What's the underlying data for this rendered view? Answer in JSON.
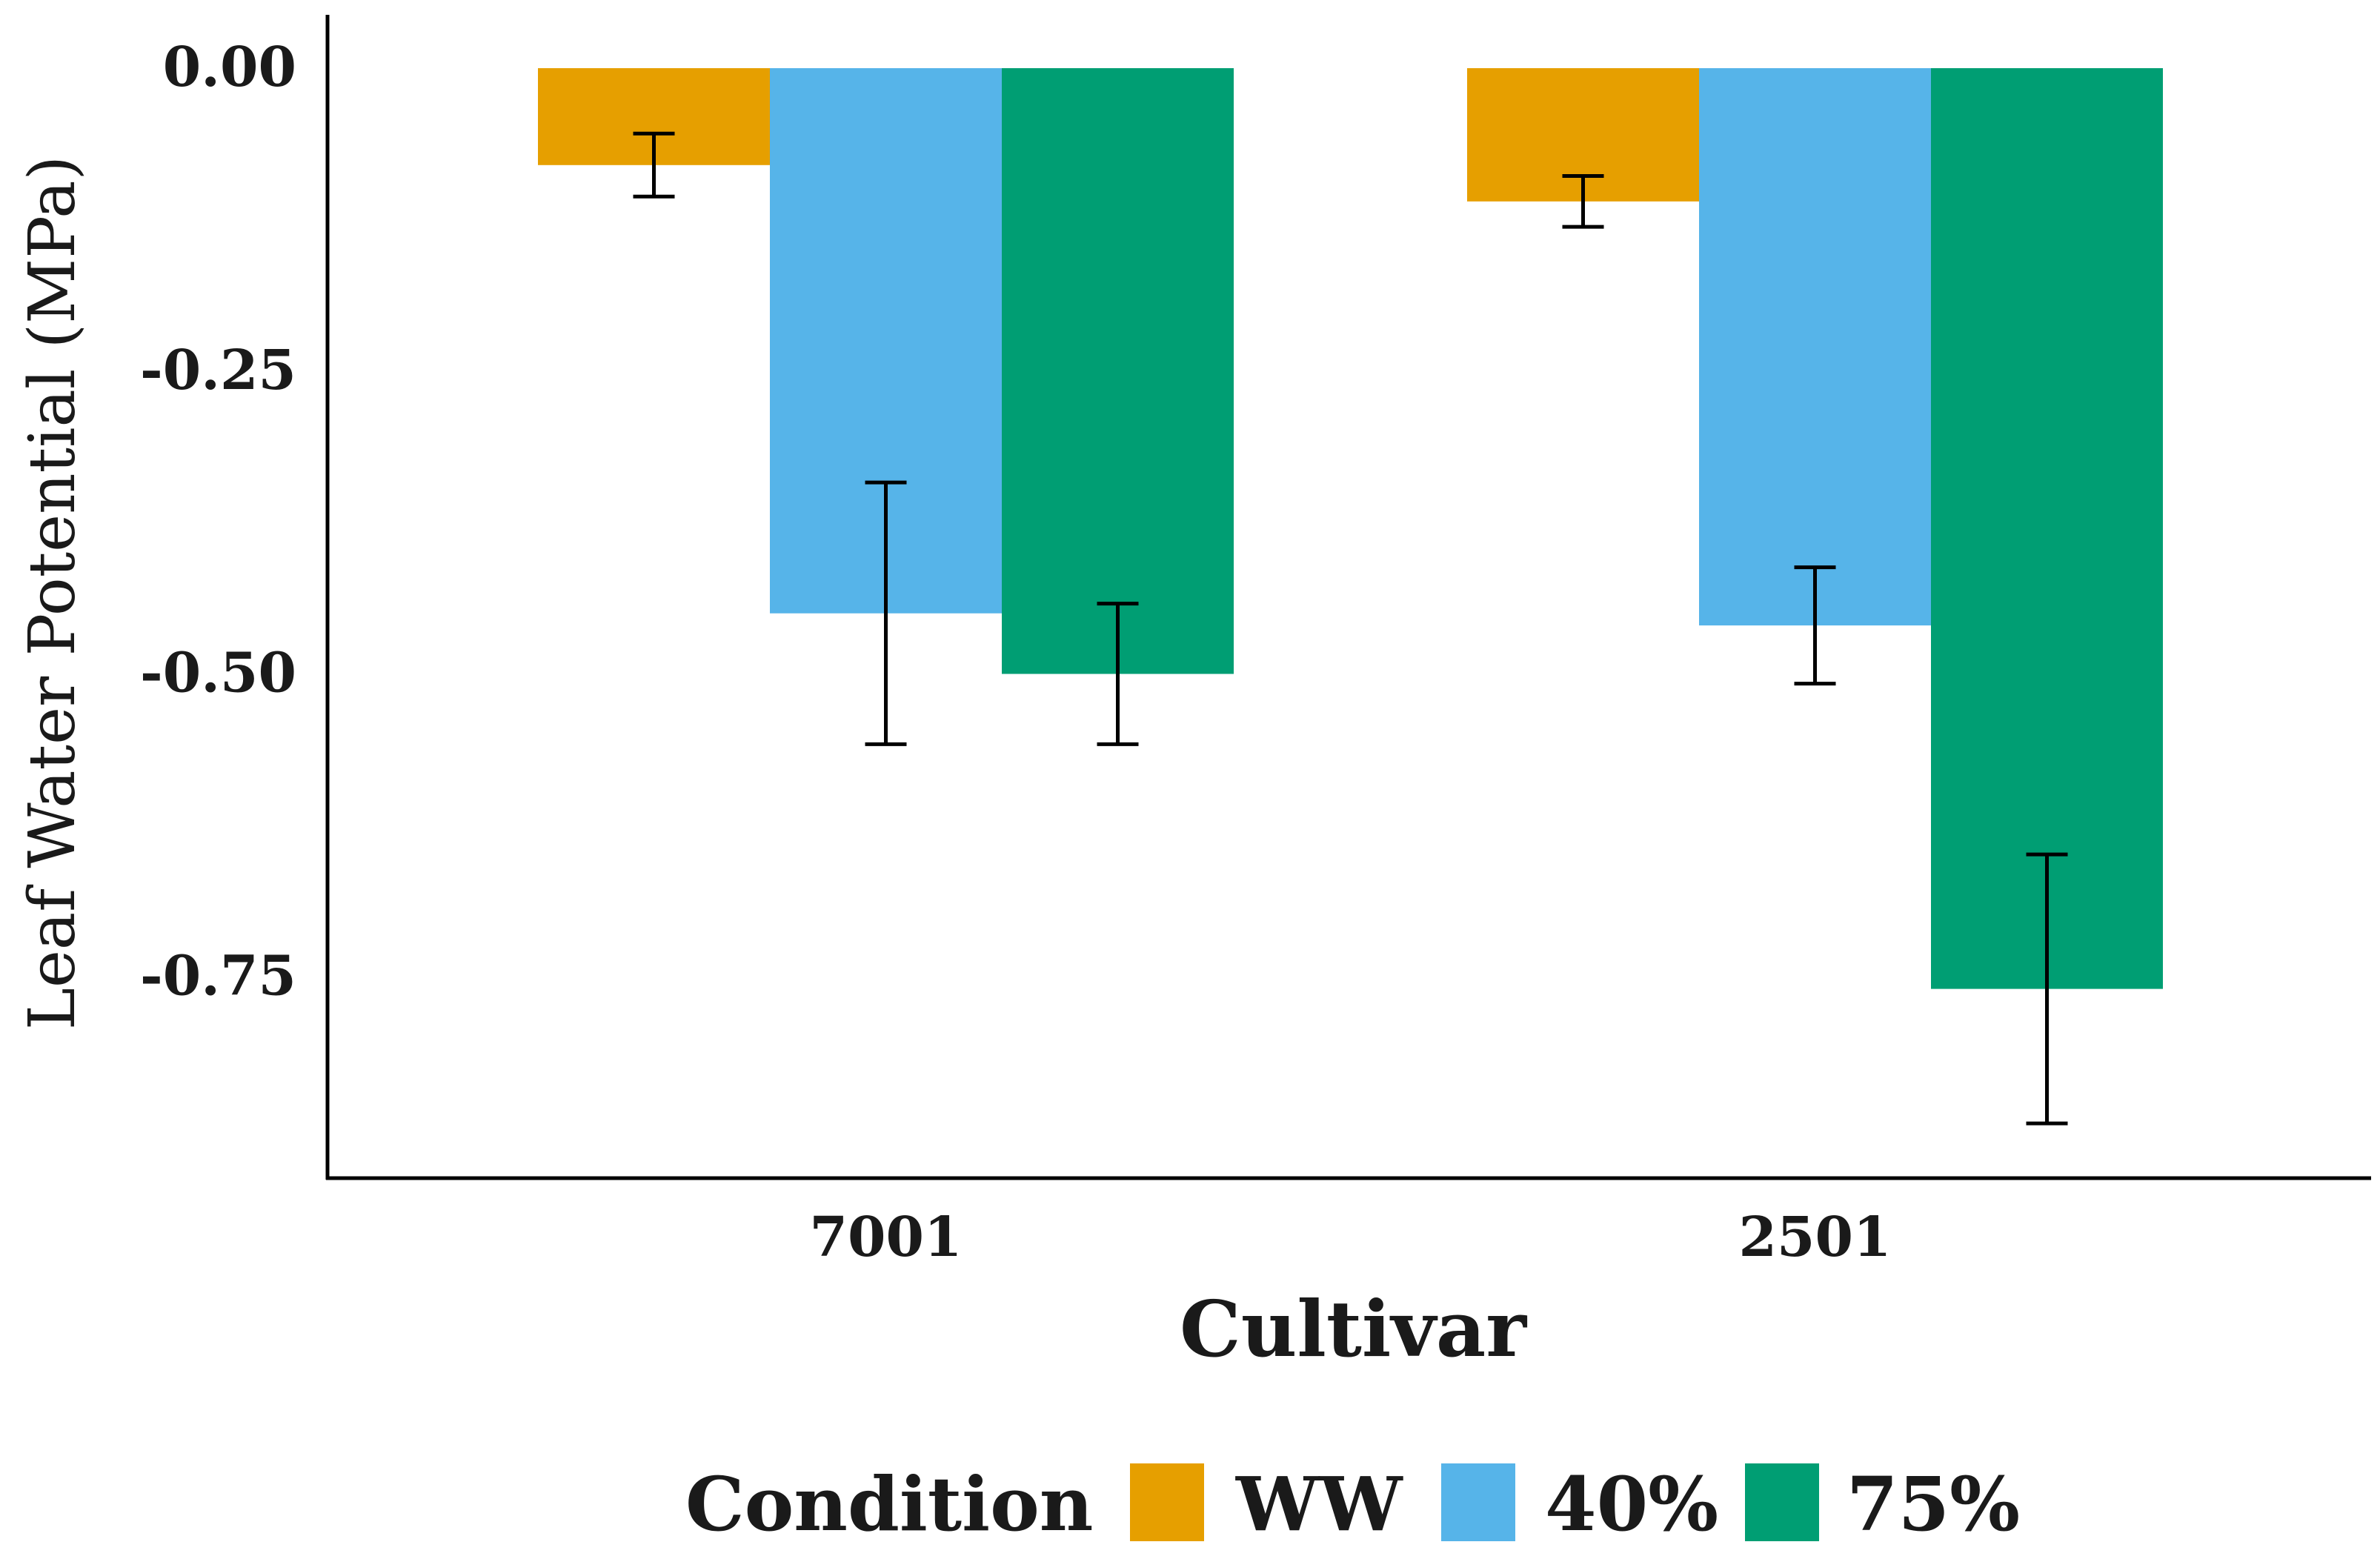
{
  "chart_data": {
    "type": "bar",
    "categories": [
      "7001",
      "2501"
    ],
    "series": [
      {
        "name": "WW",
        "color": "#E69F00",
        "values": [
          -0.08,
          -0.11
        ],
        "errors": [
          0.026,
          0.021
        ]
      },
      {
        "name": "40%",
        "color": "#56B4E9",
        "values": [
          -0.45,
          -0.46
        ],
        "errors": [
          0.108,
          0.048
        ]
      },
      {
        "name": "75%",
        "color": "#009E73",
        "values": [
          -0.5,
          -0.76
        ],
        "errors": [
          0.058,
          0.111
        ]
      }
    ],
    "xlabel": "Cultivar",
    "ylabel": "Leaf Water Potential (MPa)",
    "yticks": [
      0.0,
      -0.25,
      -0.5,
      -0.75
    ],
    "ytick_labels": [
      "0.00",
      "-0.25",
      "-0.50",
      "-0.75"
    ],
    "ylim": [
      -0.92,
      0.04
    ],
    "legend": {
      "title": "Condition",
      "position": "bottom"
    },
    "grid": false
  }
}
